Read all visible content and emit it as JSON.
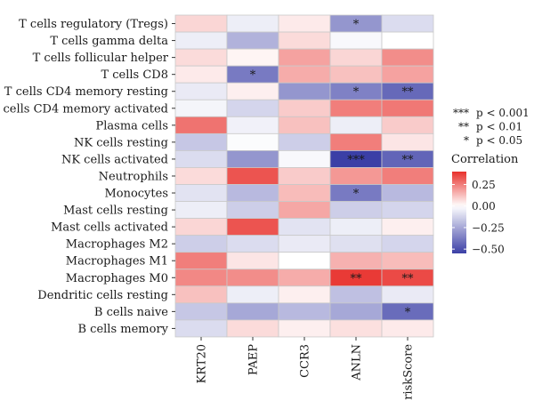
{
  "chart_data": {
    "type": "heatmap",
    "rows": [
      "T cells regulatory (Tregs)",
      "T cells gamma delta",
      "T cells follicular helper",
      "T cells CD8",
      "T cells CD4 memory resting",
      "T cells CD4 memory activated",
      "Plasma cells",
      "NK cells resting",
      "NK cells activated",
      "Neutrophils",
      "Monocytes",
      "Mast cells resting",
      "Mast cells activated",
      "Macrophages M2",
      "Macrophages M1",
      "Macrophages M0",
      "Dendritic cells resting",
      "B cells naive",
      "B cells memory"
    ],
    "columns": [
      "KRT20",
      "PAEP",
      "CCR3",
      "ANLN",
      "riskScore"
    ],
    "values": [
      [
        0.08,
        -0.05,
        0.04,
        -0.3,
        -0.1
      ],
      [
        -0.05,
        -0.22,
        0.07,
        -0.02,
        0.0
      ],
      [
        0.07,
        0.02,
        0.18,
        0.08,
        0.22
      ],
      [
        0.04,
        -0.38,
        0.16,
        0.12,
        0.18
      ],
      [
        -0.06,
        0.03,
        -0.3,
        -0.36,
        -0.43
      ],
      [
        -0.03,
        -0.12,
        0.1,
        0.25,
        0.26
      ],
      [
        0.27,
        -0.04,
        0.12,
        -0.05,
        0.1
      ],
      [
        -0.16,
        -0.01,
        -0.14,
        0.25,
        0.05
      ],
      [
        -0.1,
        -0.3,
        -0.02,
        -0.55,
        -0.44
      ],
      [
        0.07,
        0.33,
        0.1,
        0.2,
        0.25
      ],
      [
        -0.08,
        -0.2,
        0.13,
        -0.38,
        -0.2
      ],
      [
        -0.05,
        -0.14,
        0.17,
        -0.14,
        -0.12
      ],
      [
        0.08,
        0.33,
        -0.08,
        -0.05,
        0.03
      ],
      [
        -0.14,
        -0.1,
        -0.06,
        -0.09,
        -0.12
      ],
      [
        0.25,
        0.05,
        0.0,
        0.15,
        0.13
      ],
      [
        0.23,
        0.22,
        0.16,
        0.38,
        0.35
      ],
      [
        0.12,
        -0.05,
        0.03,
        -0.18,
        -0.06
      ],
      [
        -0.16,
        -0.25,
        -0.2,
        -0.25,
        -0.42
      ],
      [
        -0.1,
        0.07,
        0.03,
        0.06,
        0.04
      ]
    ],
    "significance": [
      [
        "",
        "",
        "",
        "*",
        ""
      ],
      [
        "",
        "",
        "",
        "",
        ""
      ],
      [
        "",
        "",
        "",
        "",
        ""
      ],
      [
        "",
        "*",
        "",
        "",
        ""
      ],
      [
        "",
        "",
        "",
        "*",
        "**"
      ],
      [
        "",
        "",
        "",
        "",
        ""
      ],
      [
        "",
        "",
        "",
        "",
        ""
      ],
      [
        "",
        "",
        "",
        "",
        ""
      ],
      [
        "",
        "",
        "",
        "***",
        "**"
      ],
      [
        "",
        "",
        "",
        "",
        ""
      ],
      [
        "",
        "",
        "",
        "*",
        ""
      ],
      [
        "",
        "",
        "",
        "",
        ""
      ],
      [
        "",
        "",
        "",
        "",
        ""
      ],
      [
        "",
        "",
        "",
        "",
        ""
      ],
      [
        "",
        "",
        "",
        "",
        ""
      ],
      [
        "",
        "",
        "",
        "**",
        "**"
      ],
      [
        "",
        "",
        "",
        "",
        ""
      ],
      [
        "",
        "",
        "",
        "",
        "*"
      ],
      [
        "",
        "",
        "",
        "",
        ""
      ]
    ],
    "significance_legend": [
      {
        "stars": "***",
        "text": "p < 0.001"
      },
      {
        "stars": "**",
        "text": "p < 0.01"
      },
      {
        "stars": "*",
        "text": "p < 0.05"
      }
    ],
    "colorbar": {
      "title": "Correlation",
      "range": [
        -0.55,
        0.4
      ],
      "ticks": [
        {
          "value": 0.25,
          "label": "0.25"
        },
        {
          "value": 0.0,
          "label": "0.00"
        },
        {
          "value": -0.25,
          "label": "−0.25"
        },
        {
          "value": -0.5,
          "label": "−0.50"
        }
      ],
      "colors": {
        "low": "#3b3fa6",
        "mid": "#ffffff",
        "high": "#e8302b"
      }
    },
    "grid": true
  }
}
